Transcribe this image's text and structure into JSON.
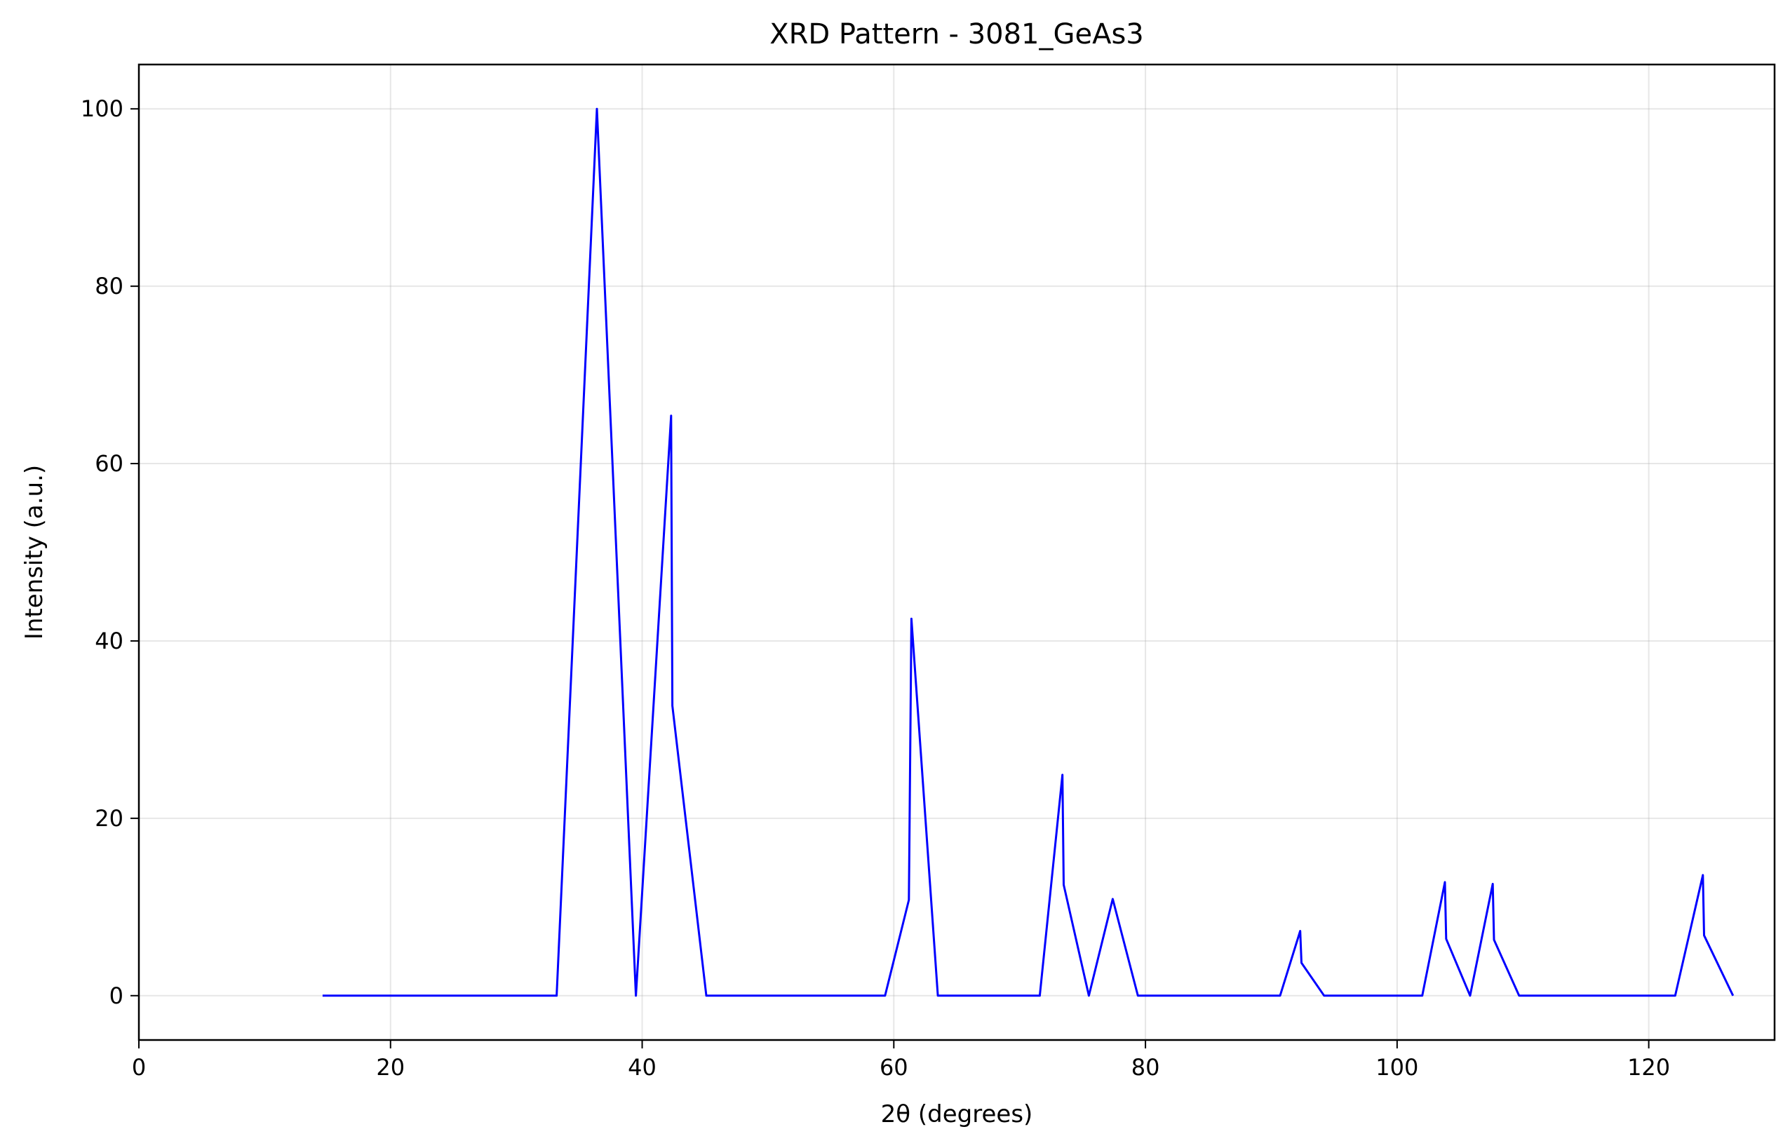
{
  "chart_data": {
    "type": "line",
    "title": "XRD Pattern - 3081_GeAs3",
    "xlabel": "2θ (degrees)",
    "ylabel": "Intensity (a.u.)",
    "xlim": [
      0,
      130
    ],
    "ylim": [
      -5,
      105
    ],
    "xticks": [
      0,
      20,
      40,
      60,
      80,
      100,
      120
    ],
    "yticks": [
      0,
      20,
      40,
      60,
      80,
      100
    ],
    "grid": true,
    "line_color": "#0000ff",
    "series": [
      {
        "x": [
          14.6,
          33.2,
          36.4,
          39.5,
          42.3,
          42.4,
          45.1,
          59.3,
          61.2,
          61.4,
          63.5,
          71.6,
          73.4,
          73.5,
          75.5,
          77.4,
          79.4,
          90.7,
          92.3,
          92.4,
          94.2,
          102.0,
          103.8,
          103.9,
          105.8,
          107.6,
          107.7,
          109.7,
          122.1,
          124.3,
          124.4,
          126.7
        ],
        "y": [
          0,
          0,
          100,
          0,
          65.4,
          32.7,
          0,
          0,
          10.8,
          42.5,
          0,
          0,
          24.9,
          12.5,
          0,
          10.9,
          0,
          0,
          7.3,
          3.7,
          0,
          0,
          12.8,
          6.4,
          0,
          12.6,
          6.3,
          0,
          0,
          13.6,
          6.8,
          0
        ]
      }
    ]
  }
}
